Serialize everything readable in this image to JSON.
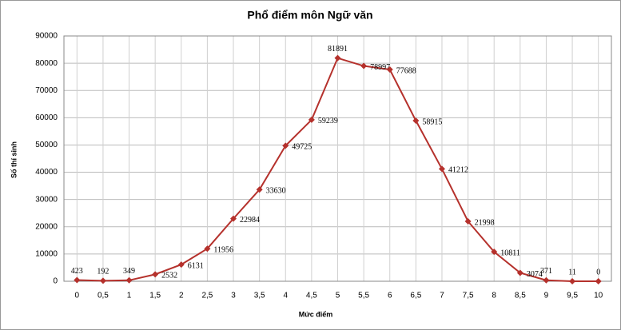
{
  "chart_data": {
    "type": "line",
    "title": "Phổ điểm môn Ngữ văn",
    "x_label": "Mức điểm",
    "y_label": "Số thí sinh",
    "categories": [
      "0",
      "0,5",
      "1",
      "1,5",
      "2",
      "2,5",
      "3",
      "3,5",
      "4",
      "4,5",
      "5",
      "5,5",
      "6",
      "6,5",
      "7",
      "7,5",
      "8",
      "8,5",
      "9",
      "9,5",
      "10"
    ],
    "values": [
      423,
      192,
      349,
      2532,
      6131,
      11956,
      22984,
      33630,
      49725,
      59239,
      81891,
      78997,
      77688,
      58915,
      41212,
      21998,
      10811,
      3074,
      371,
      11,
      0
    ],
    "color": "#b5312c",
    "ylim": [
      0,
      90000
    ],
    "yticks": [
      0,
      10000,
      20000,
      30000,
      40000,
      50000,
      60000,
      70000,
      80000,
      90000
    ],
    "grid": true
  }
}
